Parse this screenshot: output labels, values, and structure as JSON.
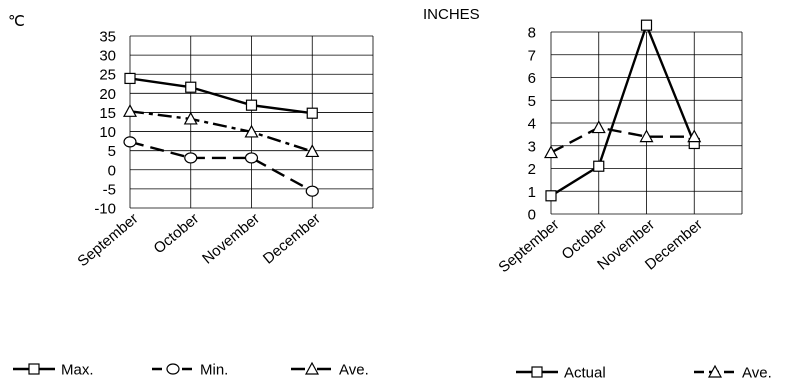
{
  "chart_data": [
    {
      "type": "line",
      "ylabel": "℃",
      "categories": [
        "September",
        "October",
        "November",
        "December"
      ],
      "ylim": [
        -10,
        35
      ],
      "yticks": [
        "35",
        "30",
        "25",
        "20",
        "15",
        "10",
        "5",
        "0",
        "-5",
        "-10"
      ],
      "grid": true,
      "legend_position": "bottom",
      "series": [
        {
          "name": "Max.",
          "values": [
            23.9,
            21.6,
            16.9,
            14.8
          ],
          "marker": "square",
          "dash": "solid"
        },
        {
          "name": "Min.",
          "values": [
            7.3,
            3.1,
            3.1,
            -5.6
          ],
          "marker": "circle",
          "dash": "long-dash"
        },
        {
          "name": "Ave.",
          "values": [
            15.3,
            13.3,
            9.9,
            4.8
          ],
          "marker": "triangle",
          "dash": "dash-dot"
        }
      ]
    },
    {
      "type": "line",
      "ylabel": "INCHES",
      "categories": [
        "September",
        "October",
        "November",
        "December"
      ],
      "ylim": [
        0,
        8
      ],
      "yticks": [
        "8",
        "7",
        "6",
        "5",
        "4",
        "3",
        "2",
        "1",
        "0"
      ],
      "grid": true,
      "legend_position": "bottom",
      "series": [
        {
          "name": "Actual",
          "values": [
            0.8,
            2.1,
            8.3,
            3.1
          ],
          "marker": "square",
          "dash": "solid"
        },
        {
          "name": "Ave.",
          "values": [
            2.7,
            3.8,
            3.4,
            3.4
          ],
          "marker": "triangle",
          "dash": "long-dash"
        }
      ]
    }
  ]
}
